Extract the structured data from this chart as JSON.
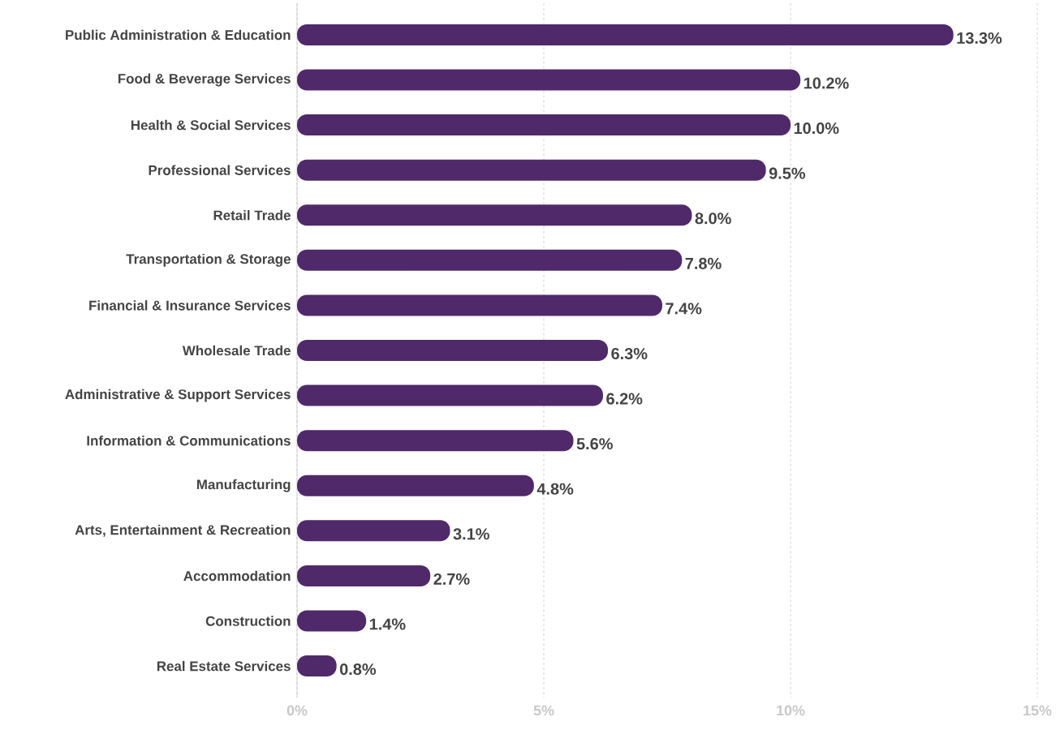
{
  "chart_data": {
    "type": "bar",
    "orientation": "horizontal",
    "categories": [
      "Public Administration & Education",
      "Food & Beverage Services",
      "Health & Social Services",
      "Professional Services",
      "Retail Trade",
      "Transportation & Storage",
      "Financial & Insurance Services",
      "Wholesale Trade",
      "Administrative & Support Services",
      "Information & Communications",
      "Manufacturing",
      "Arts, Entertainment & Recreation",
      "Accommodation",
      "Construction",
      "Real Estate Services"
    ],
    "values": [
      13.3,
      10.2,
      10.0,
      9.5,
      8.0,
      7.8,
      7.4,
      6.3,
      6.2,
      5.6,
      4.8,
      3.1,
      2.7,
      1.4,
      0.8
    ],
    "value_labels": [
      "13.3%",
      "10.2%",
      "10.0%",
      "9.5%",
      "8.0%",
      "7.8%",
      "7.4%",
      "6.3%",
      "6.2%",
      "5.6%",
      "4.8%",
      "3.1%",
      "2.7%",
      "1.4%",
      "0.8%"
    ],
    "color": "#50296a",
    "xlim": [
      0,
      15
    ],
    "xticks": [
      {
        "value": 0,
        "label": "0%"
      },
      {
        "value": 5,
        "label": "5%"
      },
      {
        "value": 10,
        "label": "10%"
      },
      {
        "value": 15,
        "label": "15%"
      }
    ],
    "grid": "x"
  }
}
